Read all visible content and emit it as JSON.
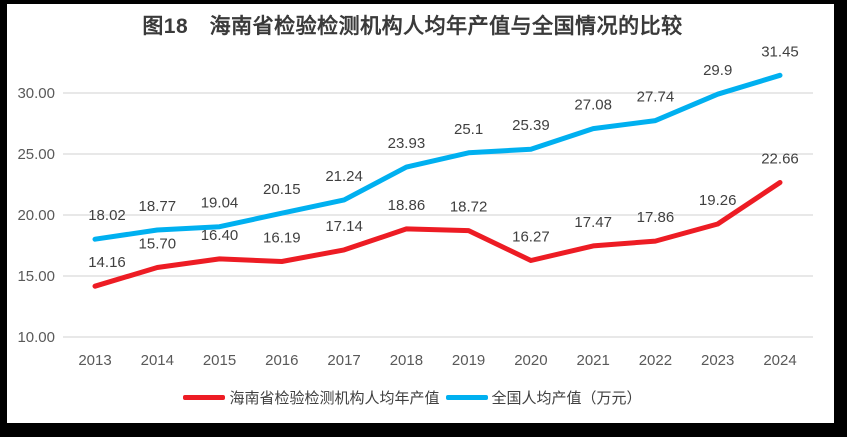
{
  "window": {
    "frame_color": "#000000",
    "canvas_color": "#FFFFFF"
  },
  "chart_data": {
    "type": "line",
    "title": "图18　海南省检验检测机构人均年产值与全国情况的比较",
    "categories": [
      "2013",
      "2014",
      "2015",
      "2016",
      "2017",
      "2018",
      "2019",
      "2020",
      "2021",
      "2022",
      "2023",
      "2024"
    ],
    "series": [
      {
        "name": "海南省检验检测机构人均年产值",
        "color": "#ED1C24",
        "values": [
          14.16,
          15.7,
          16.4,
          16.19,
          17.14,
          18.86,
          18.72,
          16.27,
          17.47,
          17.86,
          19.26,
          22.66
        ],
        "value_labels": [
          "14.16",
          "15.70",
          "16.40",
          "16.19",
          "17.14",
          "18.86",
          "18.72",
          "16.27",
          "17.47",
          "17.86",
          "19.26",
          "22.66"
        ]
      },
      {
        "name": "全国人均产值（万元）",
        "color": "#00B0F0",
        "values": [
          18.02,
          18.77,
          19.04,
          20.15,
          21.24,
          23.93,
          25.1,
          25.39,
          27.08,
          27.74,
          29.9,
          31.45
        ],
        "value_labels": [
          "18.02",
          "18.77",
          "19.04",
          "20.15",
          "21.24",
          "23.93",
          "25.1",
          "25.39",
          "27.08",
          "27.74",
          "29.9",
          "31.45"
        ]
      }
    ],
    "yticks": [
      {
        "label": "10.00",
        "value": 10
      },
      {
        "label": "15.00",
        "value": 15
      },
      {
        "label": "20.00",
        "value": 20
      },
      {
        "label": "25.00",
        "value": 25
      },
      {
        "label": "30.00",
        "value": 30
      }
    ],
    "ylim": [
      10,
      32.5
    ],
    "xlabel": "",
    "ylabel": "",
    "grid": true,
    "legend_position": "bottom",
    "gridline_color": "#D9D9D9",
    "tick_color": "#595959",
    "value_label_color": "#404040",
    "title_color": "#3A3A3A"
  }
}
